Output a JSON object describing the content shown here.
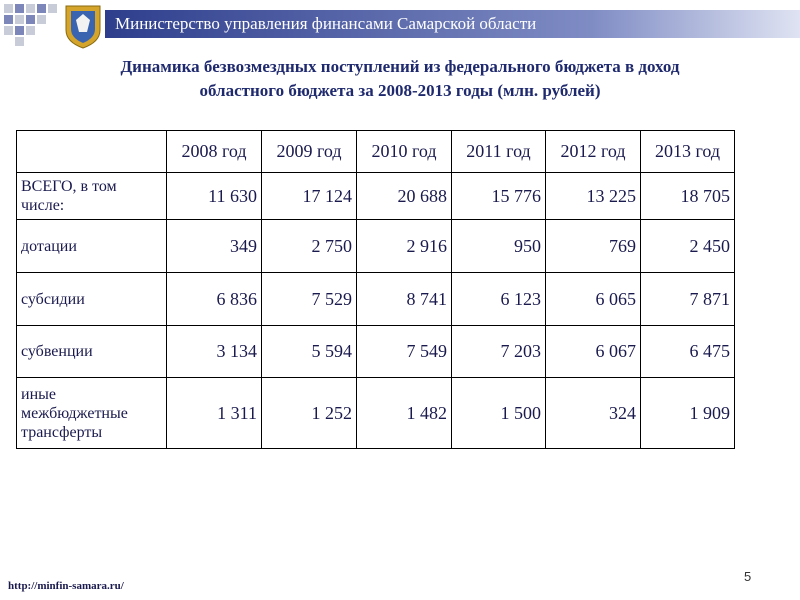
{
  "header": {
    "title": "Министерство управления финансами Самарской области"
  },
  "slide_title": [
    "Динамика безвозмездных поступлений из федерального бюджета в доход",
    "областного бюджета за 2008-2013 годы (млн. рублей)"
  ],
  "table": {
    "columns": [
      "2008 год",
      "2009 год",
      "2010 год",
      "2011 год",
      "2012 год",
      "2013 год"
    ],
    "rows": [
      [
        "ВСЕГО, в том числе:",
        "11 630",
        "17 124",
        "20 688",
        "15 776",
        "13 225",
        "18 705"
      ],
      [
        "дотации",
        "349",
        "2 750",
        "2 916",
        "950",
        "769",
        "2 450"
      ],
      [
        "субсидии",
        "6 836",
        "7 529",
        "8 741",
        "6 123",
        "6 065",
        "7 871"
      ],
      [
        "субвенции",
        "3 134",
        "5 594",
        "7 549",
        "7 203",
        "6 067",
        "6 475"
      ],
      [
        "иные межбюджетные трансферты",
        "1 311",
        "1 252",
        "1 482",
        "1 500",
        "324",
        "1 909"
      ]
    ]
  },
  "footer": {
    "url": "http://minfin-samara.ru/",
    "page": "5"
  }
}
